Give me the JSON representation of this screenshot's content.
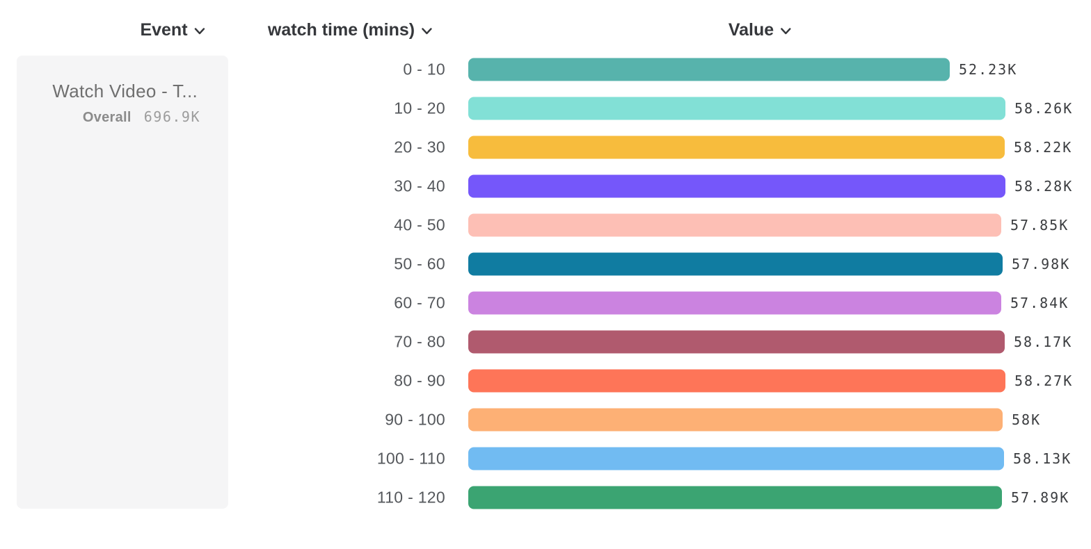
{
  "header": {
    "columns": [
      {
        "id": "event",
        "label": "Event"
      },
      {
        "id": "breakdown",
        "label": "watch time (mins)"
      },
      {
        "id": "value",
        "label": "Value"
      }
    ]
  },
  "event_card": {
    "title": "Watch Video - T...",
    "overall_label": "Overall",
    "overall_value": "696.9K"
  },
  "chart_data": {
    "type": "bar",
    "orientation": "horizontal",
    "title": "",
    "xlabel": "",
    "ylabel": "watch time (mins)",
    "xlim": [
      0,
      58280
    ],
    "grid": false,
    "legend": false,
    "categories": [
      "0 - 10",
      "10 - 20",
      "20 - 30",
      "30 - 40",
      "40 - 50",
      "50 - 60",
      "60 - 70",
      "70 - 80",
      "80 - 90",
      "90 - 100",
      "100 - 110",
      "110 - 120"
    ],
    "values": [
      52230,
      58260,
      58220,
      58280,
      57850,
      57980,
      57840,
      58170,
      58270,
      58000,
      58130,
      57890
    ],
    "value_labels": [
      "52.23K",
      "58.26K",
      "58.22K",
      "58.28K",
      "57.85K",
      "57.98K",
      "57.84K",
      "58.17K",
      "58.27K",
      "58K",
      "58.13K",
      "57.89K"
    ],
    "colors": [
      "#57b3ac",
      "#82e0d6",
      "#f7bc3d",
      "#7557fa",
      "#fdbfb5",
      "#107ca1",
      "#cb83e0",
      "#b05a6e",
      "#fe7558",
      "#fdb075",
      "#71bbf2",
      "#3ba472"
    ]
  },
  "icons": {
    "chevron_down": "chevron-down-icon"
  }
}
